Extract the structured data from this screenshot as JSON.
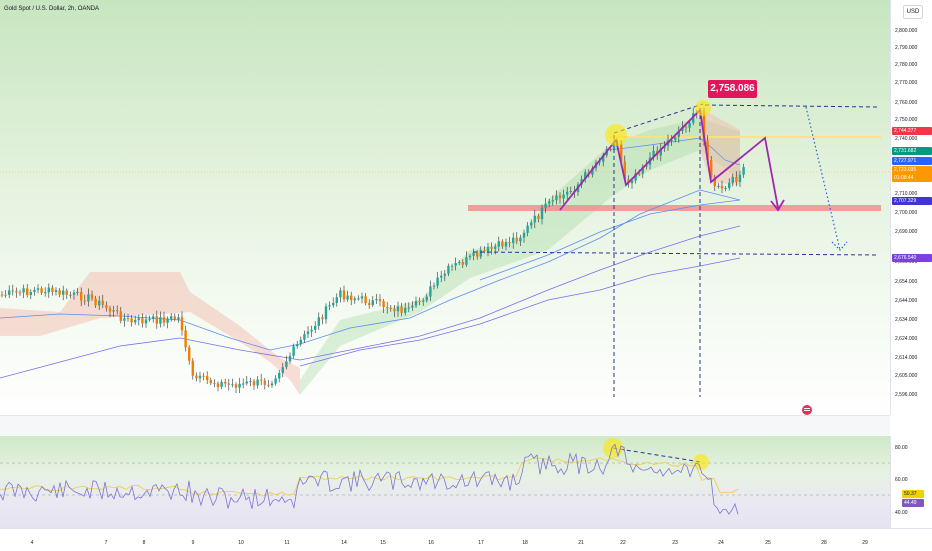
{
  "header": {
    "title": "Gold Spot / U.S. Dollar, 2h, OANDA",
    "currency": "USD"
  },
  "price_scale": {
    "ticks": [
      "2,800.000",
      "2,790.000",
      "2,780.000",
      "2,770.000",
      "2,760.000",
      "2,750.000",
      "2,740.000",
      "2,710.000",
      "2,700.000",
      "2,690.000",
      "2,666.000",
      "2,654.000",
      "2,644.000",
      "2,634.000",
      "2,624.000",
      "2,614.000",
      "2,605.000",
      "2,596.000"
    ],
    "tags": [
      {
        "text": "2,744.277",
        "color": "#f23645"
      },
      {
        "text": "2,731.682",
        "color": "#089981"
      },
      {
        "text": "2,727.971",
        "color": "#2962ff"
      },
      {
        "text": "2,723.035",
        "sub": "01:08:44",
        "color": "#ff9800"
      },
      {
        "text": "2,707.329",
        "color": "#3f35d6"
      },
      {
        "text": "2,676.540",
        "color": "#7b3fe4"
      }
    ]
  },
  "rsi_scale": {
    "ticks": [
      "80.00",
      "60.00",
      "40.00"
    ],
    "tags": [
      {
        "text": "50.37",
        "color": "#f5d000",
        "text_color": "#131722"
      },
      {
        "text": "44.49",
        "color": "#7e57c2",
        "text_color": "#ffffff"
      }
    ]
  },
  "annotations": {
    "peak_price": "2,758.086"
  },
  "time_axis": {
    "labels": [
      "4",
      "7",
      "8",
      "9",
      "10",
      "11",
      "14",
      "15",
      "16",
      "17",
      "18",
      "21",
      "22",
      "23",
      "24",
      "25",
      "28",
      "29"
    ]
  },
  "colors": {
    "bull": "#26a69a",
    "bear": "#f57c00",
    "wick": "#2a2e39",
    "ma_fast": "#5b8def",
    "ma_slow": "#7a6cf0",
    "support": "#ef9a9a",
    "pattern": "#9c27b0",
    "projection": "#1e63e6"
  }
}
